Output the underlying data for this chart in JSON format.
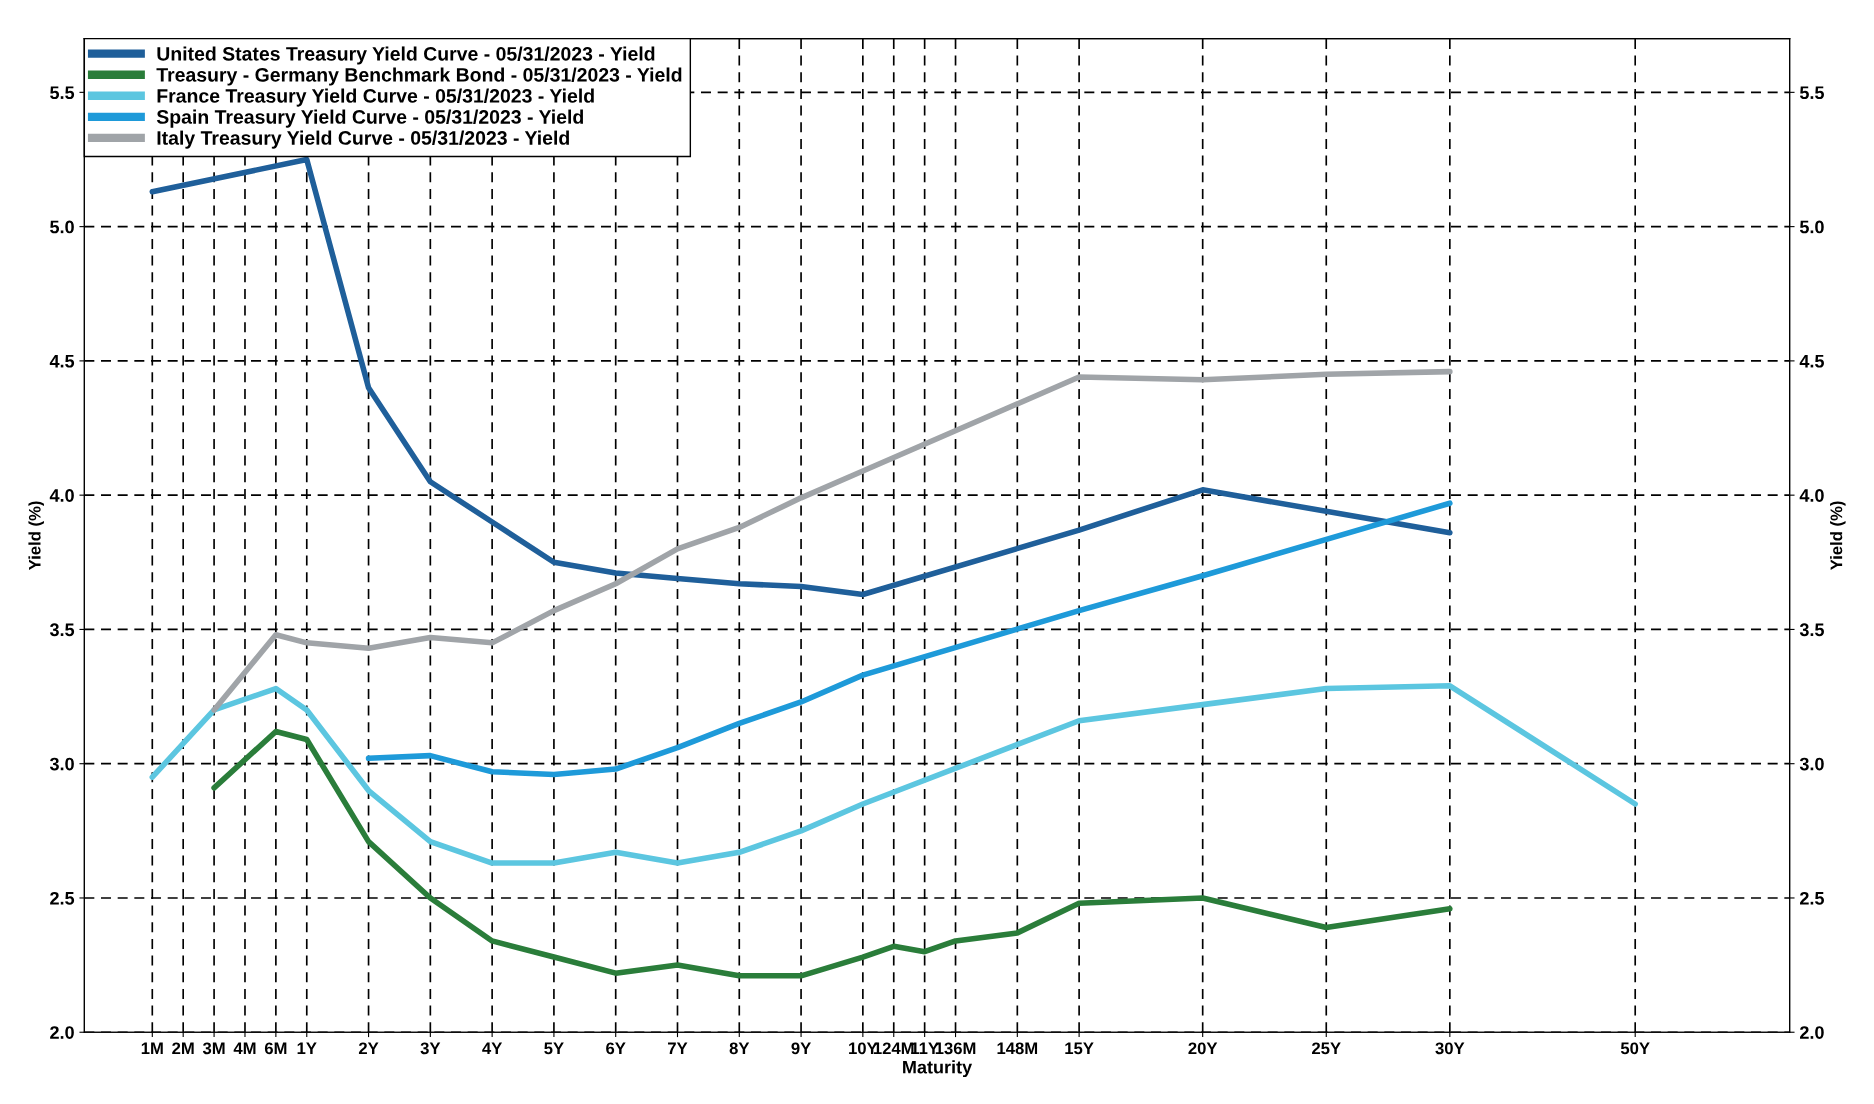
{
  "chart_data": {
    "type": "line",
    "xlabel": "Maturity",
    "ylabel": "Yield (%)",
    "y2label": "Yield (%)",
    "categories": [
      "1M",
      "2M",
      "3M",
      "4M",
      "6M",
      "1Y",
      null,
      "2Y",
      null,
      "3Y",
      null,
      "4Y",
      null,
      "5Y",
      null,
      "6Y",
      null,
      "7Y",
      null,
      "8Y",
      null,
      "9Y",
      null,
      "10Y",
      "124M",
      "11Y",
      "136M",
      null,
      "148M",
      null,
      "15Y",
      null,
      null,
      null,
      "20Y",
      null,
      null,
      null,
      "25Y",
      null,
      null,
      null,
      "30Y",
      null,
      null,
      null,
      null,
      null,
      "50Y",
      null,
      null,
      null,
      null,
      null
    ],
    "series": [
      {
        "name": "United States Treasury Yield Curve - 05/31/2023 - Yield",
        "color": "#1f5f9a",
        "values": [
          5.13,
          null,
          null,
          null,
          null,
          5.25,
          null,
          4.4,
          null,
          4.05,
          null,
          3.9,
          null,
          3.75,
          null,
          3.71,
          null,
          3.69,
          null,
          3.67,
          null,
          3.66,
          null,
          3.63,
          null,
          null,
          null,
          null,
          null,
          null,
          3.87,
          null,
          null,
          null,
          4.02,
          null,
          null,
          null,
          null,
          null,
          null,
          null,
          3.86,
          null,
          null,
          null,
          null,
          null,
          null,
          null,
          null,
          null,
          null,
          null
        ]
      },
      {
        "name": "Treasury - Germany Benchmark Bond - 05/31/2023 - Yield",
        "color": "#2a7d3a",
        "values": [
          null,
          null,
          2.91,
          null,
          3.12,
          3.09,
          null,
          2.71,
          null,
          2.5,
          null,
          2.34,
          null,
          2.28,
          null,
          2.22,
          null,
          2.25,
          null,
          2.21,
          null,
          2.21,
          null,
          2.28,
          2.32,
          2.3,
          2.34,
          null,
          2.37,
          null,
          2.48,
          null,
          null,
          null,
          2.5,
          null,
          null,
          null,
          2.39,
          null,
          null,
          null,
          2.46,
          null,
          null,
          null,
          null,
          null,
          null,
          null,
          null,
          null,
          null,
          null
        ]
      },
      {
        "name": "France Treasury Yield Curve - 05/31/2023 - Yield",
        "color": "#5cc6e0",
        "values": [
          2.95,
          null,
          3.2,
          null,
          3.28,
          3.2,
          null,
          2.9,
          null,
          2.71,
          null,
          2.63,
          null,
          2.63,
          null,
          2.67,
          null,
          2.63,
          null,
          2.67,
          null,
          2.75,
          null,
          2.85,
          null,
          null,
          null,
          null,
          null,
          null,
          3.16,
          null,
          null,
          null,
          3.22,
          null,
          null,
          null,
          3.28,
          null,
          null,
          null,
          3.29,
          null,
          null,
          null,
          null,
          null,
          2.85,
          null,
          null,
          null,
          null,
          null
        ]
      },
      {
        "name": "Spain Treasury Yield Curve - 05/31/2023 - Yield",
        "color": "#1e9ad9",
        "values": [
          null,
          null,
          null,
          null,
          null,
          null,
          null,
          3.02,
          null,
          3.03,
          null,
          2.97,
          null,
          2.96,
          null,
          2.98,
          null,
          3.06,
          null,
          3.15,
          null,
          3.23,
          null,
          3.33,
          null,
          null,
          null,
          null,
          null,
          null,
          3.57,
          null,
          null,
          null,
          3.7,
          null,
          null,
          null,
          null,
          null,
          null,
          null,
          3.97,
          null,
          null,
          null,
          null,
          null,
          null,
          null,
          null,
          null,
          null,
          null
        ]
      },
      {
        "name": "Italy Treasury Yield Curve - 05/31/2023 - Yield",
        "color": "#a0a4a8",
        "values": [
          null,
          null,
          3.2,
          null,
          3.48,
          3.45,
          null,
          3.43,
          null,
          3.47,
          null,
          3.45,
          null,
          3.57,
          null,
          3.67,
          null,
          3.8,
          null,
          3.88,
          null,
          3.99,
          null,
          4.09,
          null,
          null,
          null,
          null,
          null,
          null,
          4.44,
          null,
          null,
          null,
          4.43,
          null,
          null,
          null,
          4.45,
          null,
          null,
          null,
          4.46,
          null,
          null,
          null,
          null,
          null,
          null,
          null,
          null,
          null,
          null,
          null
        ]
      }
    ],
    "ylim": [
      2.0,
      5.7
    ],
    "yticks": [
      {
        "value": 2.0,
        "label": "2.0"
      },
      {
        "value": 2.5,
        "label": "2.5"
      },
      {
        "value": 3.0,
        "label": "3.0"
      },
      {
        "value": 3.5,
        "label": "3.5"
      },
      {
        "value": 4.0,
        "label": "4.0"
      },
      {
        "value": 4.5,
        "label": "4.5"
      },
      {
        "value": 5.0,
        "label": "5.0"
      },
      {
        "value": 5.5,
        "label": "5.5"
      }
    ],
    "y2lim": [
      2.0,
      5.7
    ],
    "y2ticks": [
      {
        "value": 2.0,
        "label": "2.0"
      },
      {
        "value": 2.5,
        "label": "2.5"
      },
      {
        "value": 3.0,
        "label": "3.0"
      },
      {
        "value": 3.5,
        "label": "3.5"
      },
      {
        "value": 4.0,
        "label": "4.0"
      },
      {
        "value": 4.5,
        "label": "4.5"
      },
      {
        "value": 5.0,
        "label": "5.0"
      },
      {
        "value": 5.5,
        "label": "5.5"
      }
    ],
    "grid": true,
    "legend": "top left",
    "marker": "none",
    "line_style": "solid"
  }
}
